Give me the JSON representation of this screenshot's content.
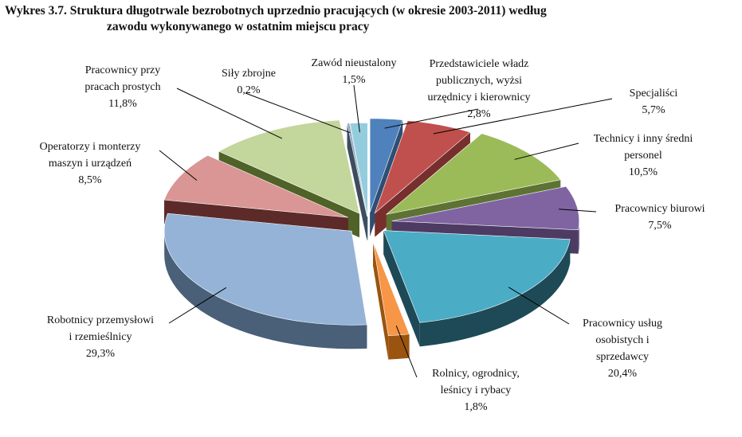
{
  "figure": {
    "title_line1": "Wykres 3.7. Struktura długotrwale bezrobotnych uprzednio pracujących (w okresie 2003-2011) według",
    "title_line2": "zawodu wykonywanego w ostatnim miejscu pracy"
  },
  "chart_data": {
    "type": "pie",
    "variant": "3d-exploded",
    "title": "Wykres 3.7. Struktura długotrwale bezrobotnych uprzednio pracujących (w okresie 2003-2011) według zawodu wykonywanego w ostatnim miejscu pracy",
    "legend": "none",
    "slices": [
      {
        "name": "Przedstawiciele władz publicznych, wyżsi urzędnicy i kierownicy",
        "label_lines": [
          "Przedstawiciele władz",
          "publicznych, wyżsi",
          "urzędnicy i kierownicy"
        ],
        "value": 2.8,
        "value_label": "2,8%",
        "color": "#4f81bd",
        "dark": "#2f4e74"
      },
      {
        "name": "Specjaliści",
        "label_lines": [
          "Specjaliści"
        ],
        "value": 5.7,
        "value_label": "5,7%",
        "color": "#c0504d",
        "dark": "#772f2d"
      },
      {
        "name": "Technicy i inny średni personel",
        "label_lines": [
          "Technicy i inny średni",
          "personel"
        ],
        "value": 10.5,
        "value_label": "10,5%",
        "color": "#9bbb59",
        "dark": "#5e7333"
      },
      {
        "name": "Pracownicy biurowi",
        "label_lines": [
          "Pracownicy biurowi"
        ],
        "value": 7.5,
        "value_label": "7,5%",
        "color": "#8064a2",
        "dark": "#4d3b63"
      },
      {
        "name": "Pracownicy usług osobistych i sprzedawcy",
        "label_lines": [
          "Pracownicy usług",
          "osobistych i",
          "sprzedawcy"
        ],
        "value": 20.4,
        "value_label": "20,4%",
        "color": "#4bacc6",
        "dark": "#1e4a57"
      },
      {
        "name": "Rolnicy, ogrodnicy, leśnicy i rybacy",
        "label_lines": [
          "Rolnicy, ogrodnicy,",
          "leśnicy i rybacy"
        ],
        "value": 1.8,
        "value_label": "1,8%",
        "color": "#f79646",
        "dark": "#9a5410"
      },
      {
        "name": "Robotnicy przemysłowi i rzemieślnicy",
        "label_lines": [
          "Robotnicy przemysłowi",
          "i rzemieślnicy"
        ],
        "value": 29.3,
        "value_label": "29,3%",
        "color": "#95b3d7",
        "dark": "#4a5f78"
      },
      {
        "name": "Operatorzy i monterzy maszyn i urządzeń",
        "label_lines": [
          "Operatorzy i monterzy",
          "maszyn i urządzeń"
        ],
        "value": 8.5,
        "value_label": "8,5%",
        "color": "#d99694",
        "dark": "#5c2b29"
      },
      {
        "name": "Pracownicy przy pracach prostych",
        "label_lines": [
          "Pracownicy przy",
          "pracach prostych"
        ],
        "value": 11.8,
        "value_label": "11,8%",
        "color": "#c3d69b",
        "dark": "#4f6228"
      },
      {
        "name": "Siły zbrojne",
        "label_lines": [
          "Siły zbrojne"
        ],
        "value": 0.2,
        "value_label": "0,2%",
        "color": "#8ba3c4",
        "dark": "#3e4d5e"
      },
      {
        "name": "Zawód nieustalony",
        "label_lines": [
          "Zawód nieustalony"
        ],
        "value": 1.5,
        "value_label": "1,5%",
        "color": "#93cddd",
        "dark": "#3d6f7c"
      }
    ]
  }
}
